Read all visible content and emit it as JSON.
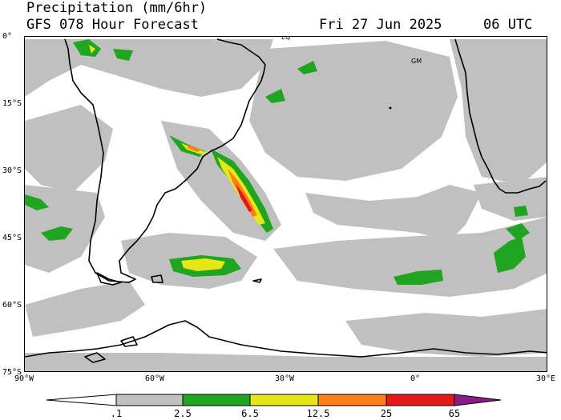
{
  "header": {
    "title": "Precipitation (mm/6hr)",
    "model": "GFS 078 Hour Forecast",
    "valid_date": "Fri 27 Jun 2025",
    "valid_time": "06 UTC"
  },
  "map": {
    "lat_labels": [
      "0°",
      "15°S",
      "30°S",
      "45°S",
      "60°S",
      "75°S"
    ],
    "lon_labels": [
      "90°W",
      "60°W",
      "30°W",
      "0°",
      "30°E"
    ],
    "tags": [
      "EQ",
      "GM"
    ],
    "colors": {
      "light_rain": "#c0c0c0",
      "moderate": "#1fa51f",
      "heavy": "#e6e619",
      "very_heavy": "#ff7f1a",
      "extreme": "#e61919",
      "max": "#8a1c8a"
    }
  },
  "legend": {
    "labels": [
      ".1",
      "2.5",
      "6.5",
      "12.5",
      "25",
      "65"
    ],
    "colors": [
      "#ffffff",
      "#c0c0c0",
      "#1fa51f",
      "#e6e619",
      "#ff7f1a",
      "#e61919",
      "#8a1c8a"
    ]
  }
}
